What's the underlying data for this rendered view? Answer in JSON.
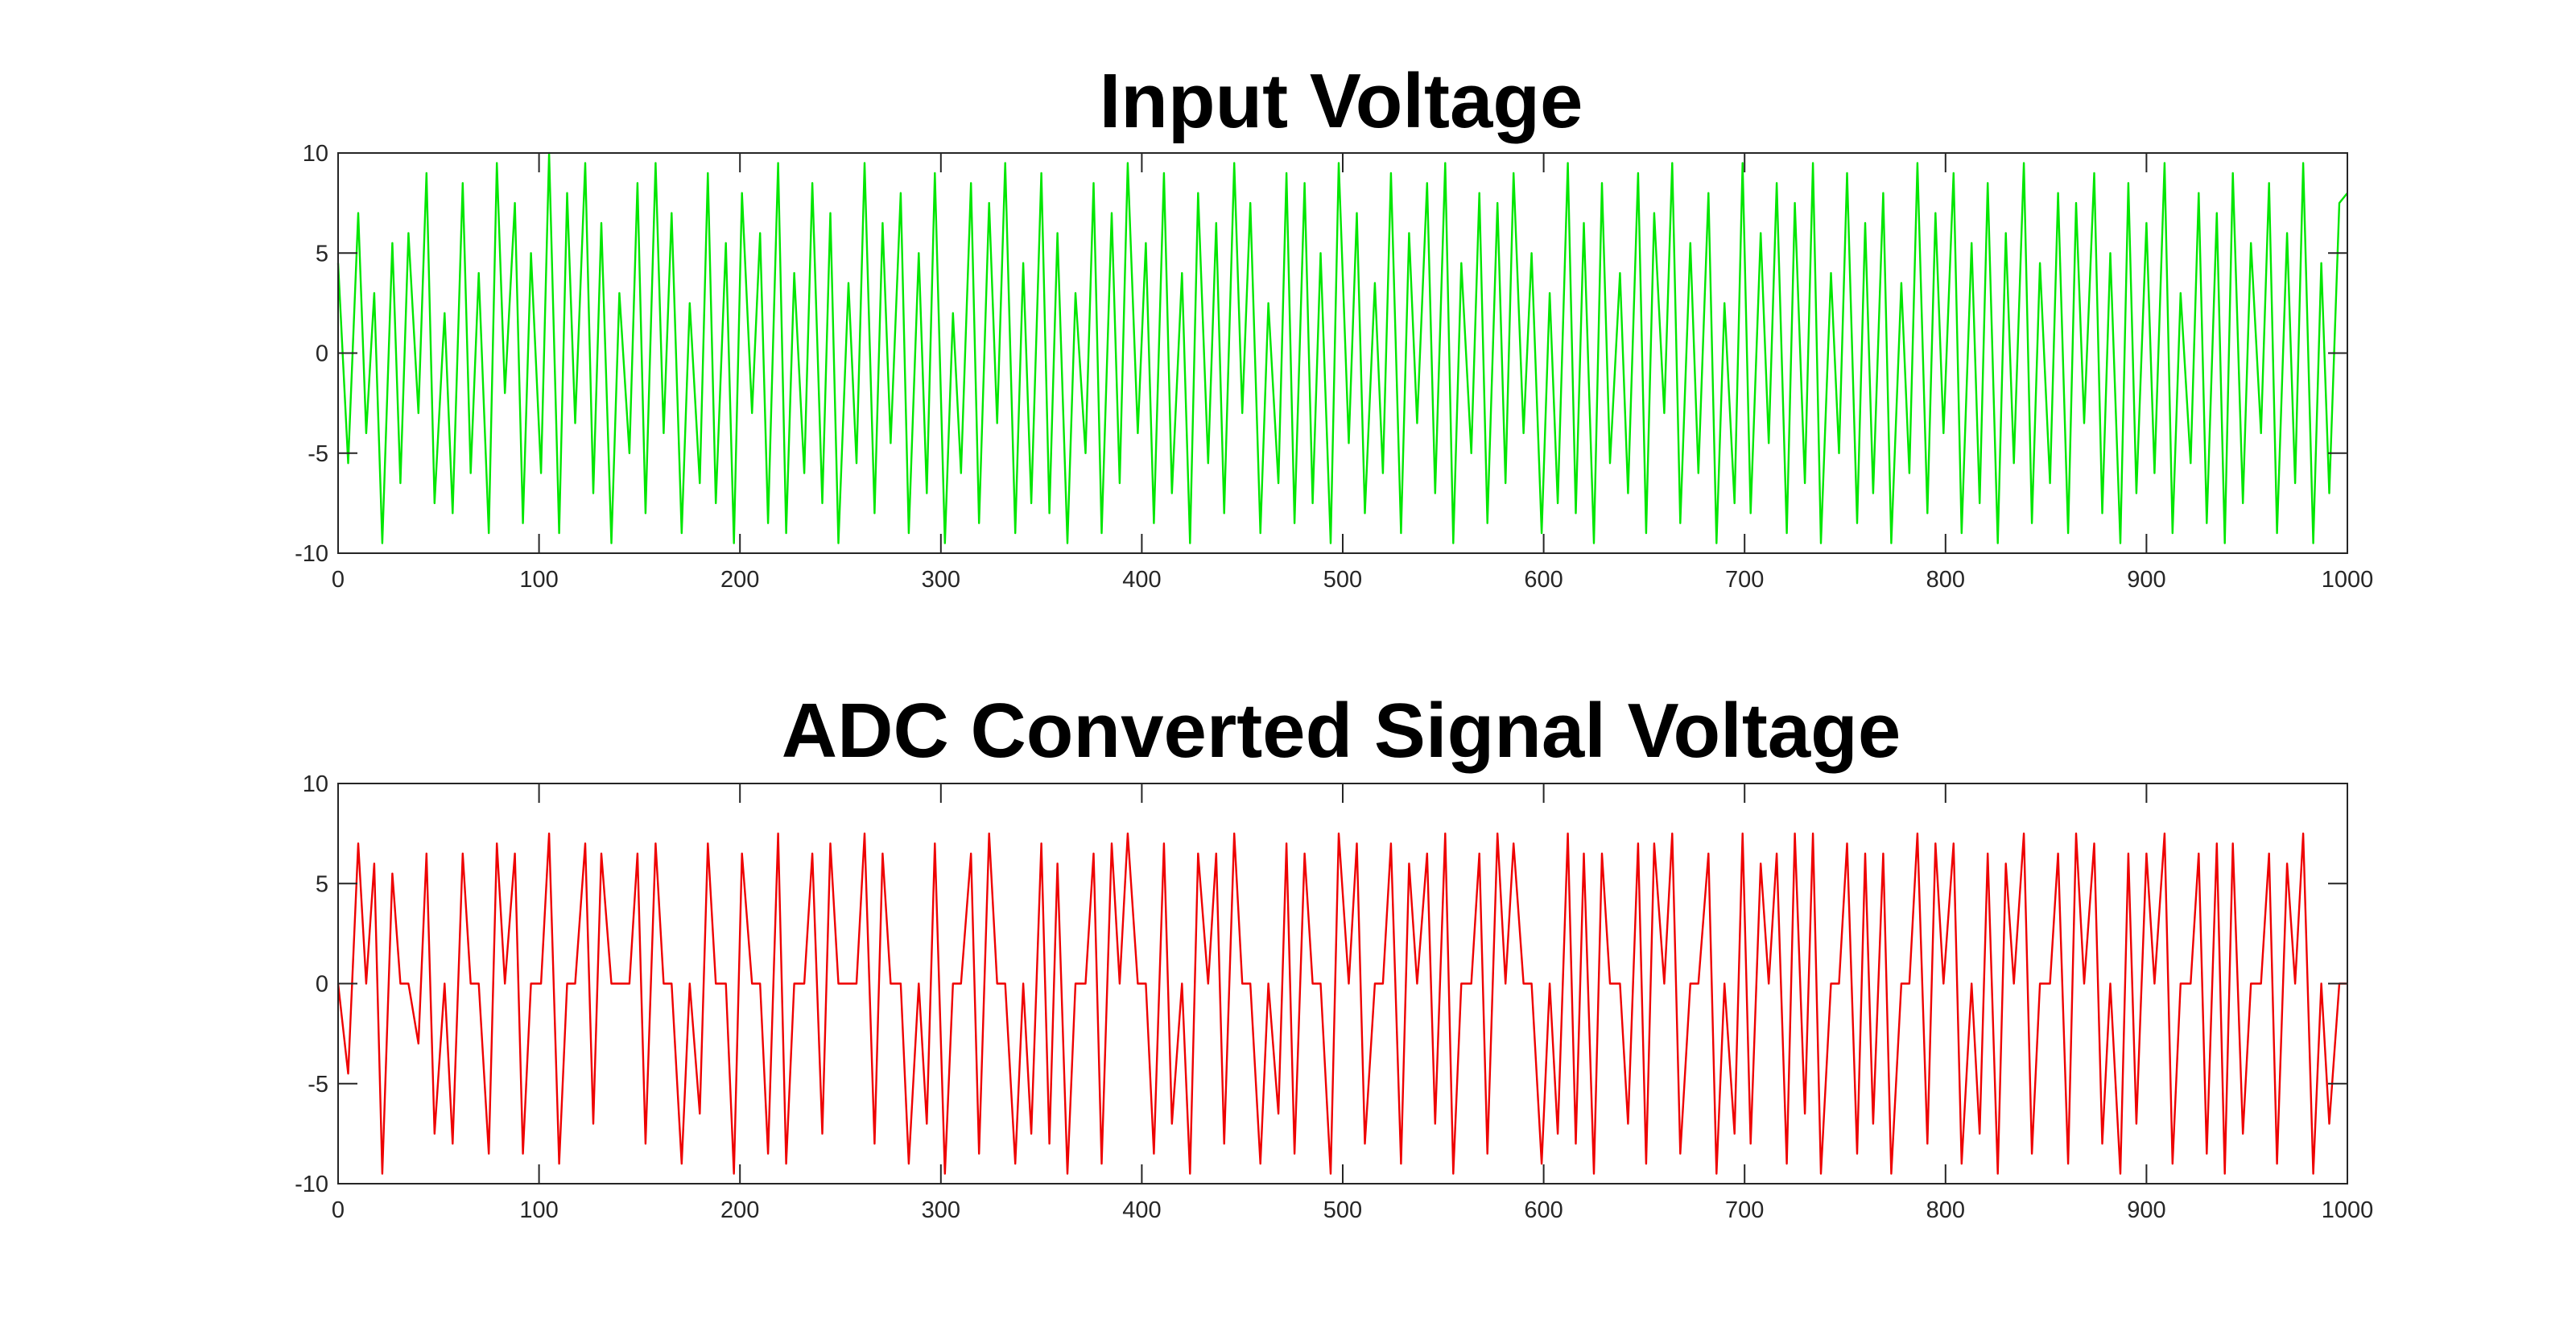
{
  "chart_data": [
    {
      "type": "line",
      "title": "Input Voltage",
      "xlabel": "",
      "ylabel": "",
      "xlim": [
        0,
        1000
      ],
      "ylim": [
        -10,
        10
      ],
      "xticks": [
        0,
        100,
        200,
        300,
        400,
        500,
        600,
        700,
        800,
        900,
        1000
      ],
      "yticks": [
        -10,
        -5,
        0,
        5,
        10
      ],
      "grid": false,
      "color": "#00e600",
      "series": [
        {
          "x": [
            0,
            5,
            10,
            14,
            18,
            22,
            27,
            31,
            35,
            40,
            44,
            48,
            53,
            57,
            62,
            66,
            70,
            75,
            79,
            83,
            88,
            92,
            96,
            101,
            105,
            110,
            114,
            118,
            123,
            127,
            131,
            136,
            140,
            145,
            149,
            153,
            158,
            162,
            166,
            171,
            175,
            180,
            184,
            188,
            193,
            197,
            201,
            206,
            210,
            214,
            219,
            223,
            227,
            232,
            236,
            241,
            245,
            249,
            254,
            258,
            262,
            267,
            271,
            275,
            280,
            284,
            289,
            293,
            297,
            302,
            306,
            310,
            315,
            319,
            324,
            328,
            332,
            337,
            341,
            345,
            350,
            354,
            358,
            363,
            367,
            372,
            376,
            380,
            385,
            389,
            393,
            398,
            402,
            406,
            411,
            415,
            420,
            424,
            428,
            433,
            437,
            441,
            446,
            450,
            454,
            459,
            463,
            468,
            472,
            476,
            481,
            485,
            489,
            494,
            498,
            503,
            507,
            511,
            516,
            520,
            524,
            529,
            533,
            537,
            542,
            546,
            551,
            555,
            559,
            564,
            568,
            572,
            577,
            581,
            585,
            590,
            594,
            599,
            603,
            607,
            612,
            616,
            620,
            625,
            629,
            633,
            638,
            642,
            647,
            651,
            655,
            660,
            664,
            668,
            673,
            677,
            682,
            686,
            690,
            695,
            699,
            703,
            708,
            712,
            716,
            721,
            725,
            730,
            734,
            738,
            743,
            747,
            751,
            756,
            760,
            764,
            769,
            773,
            778,
            782,
            786,
            791,
            795,
            799,
            804,
            808,
            813,
            817,
            821,
            826,
            830,
            834,
            839,
            843,
            847,
            852,
            856,
            861,
            865,
            869,
            874,
            878,
            882,
            887,
            891,
            895,
            900,
            904,
            909,
            913,
            917,
            922,
            926,
            930,
            935,
            939,
            943,
            948,
            952,
            957,
            961,
            965,
            970,
            974,
            978,
            983,
            987,
            991,
            996,
            1000
          ],
          "values": [
            4.5,
            -5.5,
            7.0,
            -4.0,
            3.0,
            -9.5,
            5.5,
            -6.5,
            6.0,
            -3.0,
            9.0,
            -7.5,
            2.0,
            -8.0,
            8.5,
            -6.0,
            4.0,
            -9.0,
            9.5,
            -2.0,
            7.5,
            -8.5,
            5.0,
            -6.0,
            10.0,
            -9.0,
            8.0,
            -3.5,
            9.5,
            -7.0,
            6.5,
            -9.5,
            3.0,
            -5.0,
            8.5,
            -8.0,
            9.5,
            -4.0,
            7.0,
            -9.0,
            2.5,
            -6.5,
            9.0,
            -7.5,
            5.5,
            -9.5,
            8.0,
            -3.0,
            6.0,
            -8.5,
            9.5,
            -9.0,
            4.0,
            -6.0,
            8.5,
            -7.5,
            7.0,
            -9.5,
            3.5,
            -5.5,
            9.5,
            -8.0,
            6.5,
            -4.5,
            8.0,
            -9.0,
            5.0,
            -7.0,
            9.0,
            -9.5,
            2.0,
            -6.0,
            8.5,
            -8.5,
            7.5,
            -3.5,
            9.5,
            -9.0,
            4.5,
            -7.5,
            9.0,
            -8.0,
            6.0,
            -9.5,
            3.0,
            -5.0,
            8.5,
            -9.0,
            7.0,
            -6.5,
            9.5,
            -4.0,
            5.5,
            -8.5,
            9.0,
            -7.0,
            4.0,
            -9.5,
            8.0,
            -5.5,
            6.5,
            -8.0,
            9.5,
            -3.0,
            7.5,
            -9.0,
            2.5,
            -6.5,
            9.0,
            -8.5,
            8.5,
            -7.5,
            5.0,
            -9.5,
            9.5,
            -4.5,
            7.0,
            -8.0,
            3.5,
            -6.0,
            9.0,
            -9.0,
            6.0,
            -3.5,
            8.5,
            -7.0,
            9.5,
            -9.5,
            4.5,
            -5.0,
            8.0,
            -8.5,
            7.5,
            -6.5,
            9.0,
            -4.0,
            5.0,
            -9.0,
            3.0,
            -7.5,
            9.5,
            -8.0,
            6.5,
            -9.5,
            8.5,
            -5.5,
            4.0,
            -7.0,
            9.0,
            -9.0,
            7.0,
            -3.0,
            9.5,
            -8.5,
            5.5,
            -6.0,
            8.0,
            -9.5,
            2.5,
            -7.5,
            9.5,
            -8.0,
            6.0,
            -4.5,
            8.5,
            -9.0,
            7.5,
            -6.5,
            9.5,
            -9.5,
            4.0,
            -5.0,
            9.0,
            -8.5,
            6.5,
            -7.0,
            8.0,
            -9.5,
            3.5,
            -6.0,
            9.5,
            -8.0,
            7.0,
            -4.0,
            9.0,
            -9.0,
            5.5,
            -7.5,
            8.5,
            -9.5,
            6.0,
            -5.5,
            9.5,
            -8.5,
            4.5,
            -6.5,
            8.0,
            -9.0,
            7.5,
            -3.5,
            9.0,
            -8.0,
            5.0,
            -9.5,
            8.5,
            -7.0,
            6.5,
            -6.0,
            9.5,
            -9.0,
            3.0,
            -5.5,
            8.0,
            -8.5,
            7.0,
            -9.5,
            9.0,
            -7.5,
            5.5,
            -4.0,
            8.5,
            -9.0,
            6.0,
            -6.5,
            9.5,
            -9.5,
            4.5,
            -7.0,
            7.5,
            8.0
          ]
        }
      ]
    },
    {
      "type": "line",
      "title": "ADC Converted Signal Voltage",
      "xlabel": "",
      "ylabel": "",
      "xlim": [
        0,
        1000
      ],
      "ylim": [
        -10,
        10
      ],
      "xticks": [
        0,
        100,
        200,
        300,
        400,
        500,
        600,
        700,
        800,
        900,
        1000
      ],
      "yticks": [
        -10,
        -5,
        0,
        5,
        10
      ],
      "grid": false,
      "color": "#ee0000",
      "series": [
        {
          "x": [
            0,
            5,
            10,
            14,
            18,
            22,
            27,
            31,
            35,
            40,
            44,
            48,
            53,
            57,
            62,
            66,
            70,
            75,
            79,
            83,
            88,
            92,
            96,
            101,
            105,
            110,
            114,
            118,
            123,
            127,
            131,
            136,
            140,
            145,
            149,
            153,
            158,
            162,
            166,
            171,
            175,
            180,
            184,
            188,
            193,
            197,
            201,
            206,
            210,
            214,
            219,
            223,
            227,
            232,
            236,
            241,
            245,
            249,
            254,
            258,
            262,
            267,
            271,
            275,
            280,
            284,
            289,
            293,
            297,
            302,
            306,
            310,
            315,
            319,
            324,
            328,
            332,
            337,
            341,
            345,
            350,
            354,
            358,
            363,
            367,
            372,
            376,
            380,
            385,
            389,
            393,
            398,
            402,
            406,
            411,
            415,
            420,
            424,
            428,
            433,
            437,
            441,
            446,
            450,
            454,
            459,
            463,
            468,
            472,
            476,
            481,
            485,
            489,
            494,
            498,
            503,
            507,
            511,
            516,
            520,
            524,
            529,
            533,
            537,
            542,
            546,
            551,
            555,
            559,
            564,
            568,
            572,
            577,
            581,
            585,
            590,
            594,
            599,
            603,
            607,
            612,
            616,
            620,
            625,
            629,
            633,
            638,
            642,
            647,
            651,
            655,
            660,
            664,
            668,
            673,
            677,
            682,
            686,
            690,
            695,
            699,
            703,
            708,
            712,
            716,
            721,
            725,
            730,
            734,
            738,
            743,
            747,
            751,
            756,
            760,
            764,
            769,
            773,
            778,
            782,
            786,
            791,
            795,
            799,
            804,
            808,
            813,
            817,
            821,
            826,
            830,
            834,
            839,
            843,
            847,
            852,
            856,
            861,
            865,
            869,
            874,
            878,
            882,
            887,
            891,
            895,
            900,
            904,
            909,
            913,
            917,
            922,
            926,
            930,
            935,
            939,
            943,
            948,
            952,
            957,
            961,
            965,
            970,
            974,
            978,
            983,
            987,
            991,
            996,
            1000
          ],
          "values": [
            0,
            -4.5,
            7.0,
            0,
            6.0,
            -9.5,
            5.5,
            0,
            0,
            -3.0,
            6.5,
            -7.5,
            0,
            -8.0,
            6.5,
            0,
            0,
            -8.5,
            7.0,
            0,
            6.5,
            -8.5,
            0,
            0,
            7.5,
            -9.0,
            0,
            0,
            7.0,
            -7.0,
            6.5,
            0,
            0,
            0,
            6.5,
            -8.0,
            7.0,
            0,
            0,
            -9.0,
            0,
            -6.5,
            7.0,
            0,
            0,
            -9.5,
            6.5,
            0,
            0,
            -8.5,
            7.5,
            -9.0,
            0,
            0,
            6.5,
            -7.5,
            7.0,
            0,
            0,
            0,
            7.5,
            -8.0,
            6.5,
            0,
            0,
            -9.0,
            0,
            -7.0,
            7.0,
            -9.5,
            0,
            0,
            6.5,
            -8.5,
            7.5,
            0,
            0,
            -9.0,
            0,
            -7.5,
            7.0,
            -8.0,
            6.0,
            -9.5,
            0,
            0,
            6.5,
            -9.0,
            7.0,
            0,
            7.5,
            0,
            0,
            -8.5,
            7.0,
            -7.0,
            0,
            -9.5,
            6.5,
            0,
            6.5,
            -8.0,
            7.5,
            0,
            0,
            -9.0,
            0,
            -6.5,
            7.0,
            -8.5,
            6.5,
            0,
            0,
            -9.5,
            7.5,
            0,
            7.0,
            -8.0,
            0,
            0,
            7.0,
            -9.0,
            6.0,
            0,
            6.5,
            -7.0,
            7.5,
            -9.5,
            0,
            0,
            6.5,
            -8.5,
            7.5,
            0,
            7.0,
            0,
            0,
            -9.0,
            0,
            -7.5,
            7.5,
            -8.0,
            6.5,
            -9.5,
            6.5,
            0,
            0,
            -7.0,
            7.0,
            -9.0,
            7.0,
            0,
            7.5,
            -8.5,
            0,
            0,
            6.5,
            -9.5,
            0,
            -7.5,
            7.5,
            -8.0,
            6.0,
            0,
            6.5,
            -9.0,
            7.5,
            -6.5,
            7.5,
            -9.5,
            0,
            0,
            7.0,
            -8.5,
            6.5,
            -7.0,
            6.5,
            -9.5,
            0,
            0,
            7.5,
            -8.0,
            7.0,
            0,
            7.0,
            -9.0,
            0,
            -7.5,
            6.5,
            -9.5,
            6.0,
            0,
            7.5,
            -8.5,
            0,
            0,
            6.5,
            -9.0,
            7.5,
            0,
            7.0,
            -8.0,
            0,
            -9.5,
            6.5,
            -7.0,
            6.5,
            0,
            7.5,
            -9.0,
            0,
            0,
            6.5,
            -8.5,
            7.0,
            -9.5,
            7.0,
            -7.5,
            0,
            0,
            6.5,
            -9.0,
            6.0,
            0,
            7.5,
            -9.5,
            0,
            -7.0,
            0,
            0
          ]
        }
      ]
    }
  ]
}
